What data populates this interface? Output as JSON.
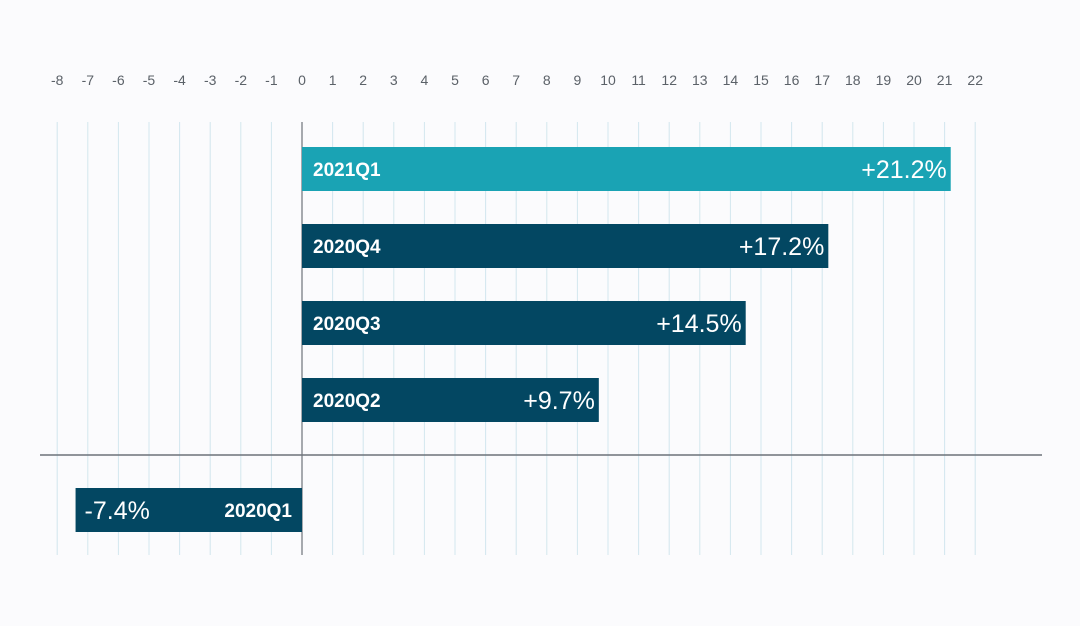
{
  "chart_data": {
    "type": "bar",
    "orientation": "horizontal",
    "categories": [
      "2021Q1",
      "2020Q4",
      "2020Q3",
      "2020Q2",
      "2020Q1"
    ],
    "values": [
      21.2,
      17.2,
      14.5,
      9.7,
      -7.4
    ],
    "value_labels": [
      "+21.2%",
      "+17.2%",
      "+14.5%",
      "+9.7%",
      "-7.4%"
    ],
    "xlim": [
      -8,
      22
    ],
    "x_ticks": [
      "-8",
      "-7",
      "-6",
      "-5",
      "-4",
      "-3",
      "-2",
      "-1",
      "0",
      "1",
      "2",
      "3",
      "4",
      "5",
      "6",
      "7",
      "8",
      "9",
      "10",
      "11",
      "12",
      "13",
      "14",
      "15",
      "16",
      "17",
      "18",
      "19",
      "20",
      "21",
      "22"
    ],
    "x_tick_position": "top",
    "grid": true,
    "colors": {
      "highlight": "#1aa3b4",
      "bar": "#034762",
      "grid": "#d3e7ee",
      "axis": "#6d737a",
      "tick_text": "#5b6168",
      "bar_text": "#ffffff"
    }
  }
}
